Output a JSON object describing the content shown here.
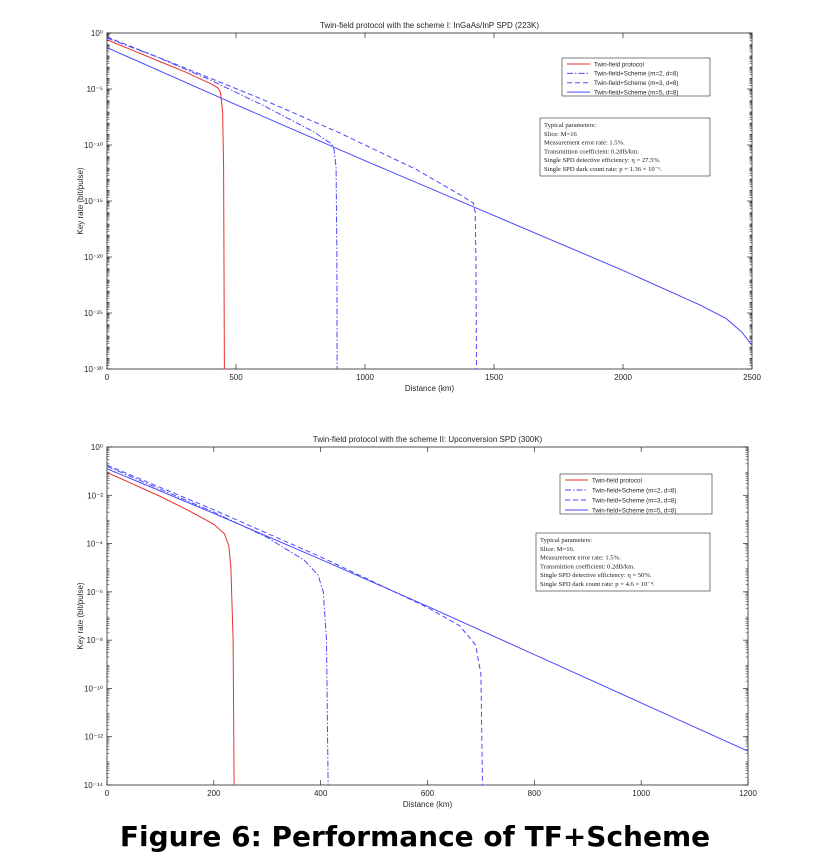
{
  "figure_caption": "Figure 6: Performance of TF+Scheme",
  "chart_data": [
    {
      "type": "line",
      "title": "Twin-field protocol with the scheme I: InGaAs/InP SPD (223K)",
      "xlabel": "Distance (km)",
      "ylabel": "Key rate (bit/pulse)",
      "xlim": [
        0,
        2500
      ],
      "xticks": [
        0,
        500,
        1000,
        1500,
        2000,
        2500
      ],
      "yscale": "log",
      "ylim_exp": [
        -30,
        0
      ],
      "yticks_exp": [
        0,
        -5,
        -10,
        -15,
        -20,
        -25,
        -30
      ],
      "ytick_labels": [
        "10⁰",
        "10⁻⁵",
        "10⁻¹⁰",
        "10⁻¹⁵",
        "10⁻²⁰",
        "10⁻²⁵",
        "10⁻³⁰"
      ],
      "legend_position": "top-right",
      "series": [
        {
          "name": "Twin-field protocol",
          "color": "#e8312a",
          "dash": "solid",
          "points": [
            [
              0,
              -0.6
            ],
            [
              100,
              -1.55
            ],
            [
              200,
              -2.5
            ],
            [
              300,
              -3.45
            ],
            [
              400,
              -4.5
            ],
            [
              430,
              -4.9
            ],
            [
              440,
              -5.3
            ],
            [
              448,
              -7
            ],
            [
              452,
              -12
            ],
            [
              455,
              -30
            ]
          ]
        },
        {
          "name": "Twin-field+Scheme (m=2, d=8)",
          "color": "#4a4aff",
          "dash": "dashdot",
          "points": [
            [
              0,
              -0.45
            ],
            [
              200,
              -2.2
            ],
            [
              400,
              -4.2
            ],
            [
              600,
              -6.4
            ],
            [
              800,
              -8.8
            ],
            [
              870,
              -9.9
            ],
            [
              880,
              -10.4
            ],
            [
              888,
              -12
            ],
            [
              891,
              -20
            ],
            [
              892,
              -30
            ]
          ]
        },
        {
          "name": "Twin-field+Scheme (m=3, d=8)",
          "color": "#4a4aff",
          "dash": "dashed",
          "points": [
            [
              0,
              -0.35
            ],
            [
              300,
              -3.1
            ],
            [
              600,
              -5.9
            ],
            [
              900,
              -8.9
            ],
            [
              1200,
              -12.2
            ],
            [
              1380,
              -14.6
            ],
            [
              1420,
              -15.2
            ],
            [
              1427,
              -16
            ],
            [
              1430,
              -20
            ],
            [
              1432,
              -30
            ]
          ]
        },
        {
          "name": "Twin-field+Scheme (m=5, d=8)",
          "color": "#4a4aff",
          "dash": "solid",
          "points": [
            [
              0,
              -1.3
            ],
            [
              500,
              -6.4
            ],
            [
              1000,
              -11.4
            ],
            [
              1500,
              -16.3
            ],
            [
              2000,
              -21.2
            ],
            [
              2300,
              -24.3
            ],
            [
              2400,
              -25.5
            ],
            [
              2460,
              -26.7
            ],
            [
              2500,
              -27.9
            ]
          ]
        }
      ],
      "annotation": [
        "Typical parameters:",
        "Slice: M=16",
        "Measurement error rate: 1.5%.",
        "Transmittion coefficient: 0.2dB/km.",
        "Single SPD detective efficiency: η = 27.5%.",
        "Single SPD dark count rate: p = 1.36 × 10⁻⁶."
      ]
    },
    {
      "type": "line",
      "title": "Twin-field protocol with the scheme II: Upconversion SPD (300K)",
      "xlabel": "Distance (km)",
      "ylabel": "Key rate (bit/pulse)",
      "xlim": [
        0,
        1200
      ],
      "xticks": [
        0,
        200,
        400,
        600,
        800,
        1000,
        1200
      ],
      "yscale": "log",
      "ylim_exp": [
        -14,
        0
      ],
      "yticks_exp": [
        0,
        -2,
        -4,
        -6,
        -8,
        -10,
        -12,
        -14
      ],
      "ytick_labels": [
        "10⁰",
        "10⁻²",
        "10⁻⁴",
        "10⁻⁶",
        "10⁻⁸",
        "10⁻¹⁰",
        "10⁻¹²",
        "10⁻¹⁴"
      ],
      "legend_position": "top-right",
      "series": [
        {
          "name": "Twin-field protocol",
          "color": "#e8312a",
          "dash": "solid",
          "points": [
            [
              0,
              -1.05
            ],
            [
              50,
              -1.55
            ],
            [
              100,
              -2.05
            ],
            [
              150,
              -2.6
            ],
            [
              200,
              -3.2
            ],
            [
              220,
              -3.6
            ],
            [
              228,
              -4.1
            ],
            [
              232,
              -5
            ],
            [
              236,
              -8
            ],
            [
              238,
              -14
            ]
          ]
        },
        {
          "name": "Twin-field+Scheme (m=2, d=8)",
          "color": "#4a4aff",
          "dash": "dashdot",
          "points": [
            [
              0,
              -0.8
            ],
            [
              100,
              -1.75
            ],
            [
              200,
              -2.7
            ],
            [
              300,
              -3.75
            ],
            [
              370,
              -4.7
            ],
            [
              395,
              -5.3
            ],
            [
              405,
              -6
            ],
            [
              411,
              -8
            ],
            [
              414,
              -14
            ]
          ]
        },
        {
          "name": "Twin-field+Scheme (m=3, d=8)",
          "color": "#4a4aff",
          "dash": "dashed",
          "points": [
            [
              0,
              -0.75
            ],
            [
              200,
              -2.6
            ],
            [
              400,
              -4.55
            ],
            [
              600,
              -6.65
            ],
            [
              660,
              -7.4
            ],
            [
              690,
              -8.2
            ],
            [
              700,
              -9.4
            ],
            [
              703,
              -14
            ]
          ]
        },
        {
          "name": "Twin-field+Scheme (m=5, d=8)",
          "color": "#4a4aff",
          "dash": "solid",
          "points": [
            [
              0,
              -0.9
            ],
            [
              200,
              -2.75
            ],
            [
              400,
              -4.65
            ],
            [
              600,
              -6.6
            ],
            [
              800,
              -8.6
            ],
            [
              1000,
              -10.6
            ],
            [
              1200,
              -12.6
            ]
          ]
        }
      ],
      "annotation": [
        "Typical parameters:",
        "Slice: M=16.",
        "Measurement error rate: 1.5%.",
        "Transmittion coefficient: 0.2dB/km.",
        "Single SPD detective efficiency: η = 50%.",
        "Single SPD dark count rate: p = 4.6 × 10⁻⁴."
      ]
    }
  ]
}
